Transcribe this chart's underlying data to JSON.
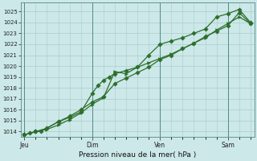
{
  "xlabel": "Pression niveau de la mer( hPa )",
  "bg_color": "#cce8e8",
  "grid_color": "#aacccc",
  "line_color": "#2d6e2d",
  "ylim": [
    1013.5,
    1025.8
  ],
  "yticks": [
    1014,
    1015,
    1016,
    1017,
    1018,
    1019,
    1020,
    1021,
    1022,
    1023,
    1024,
    1025
  ],
  "day_labels": [
    "Jeu",
    "Dim",
    "Ven",
    "Sam"
  ],
  "day_positions": [
    0,
    36,
    72,
    108
  ],
  "xlim": [
    -2,
    122
  ],
  "series1_x": [
    0,
    3,
    6,
    9,
    18,
    24,
    30,
    36,
    39,
    42,
    45,
    48,
    54,
    60,
    66,
    72,
    78,
    84,
    90,
    96,
    102,
    108,
    114,
    120
  ],
  "series1_y": [
    1013.7,
    1013.85,
    1014.0,
    1014.05,
    1014.9,
    1015.3,
    1015.8,
    1017.5,
    1018.2,
    1018.7,
    1019.0,
    1019.3,
    1019.6,
    1019.9,
    1021.0,
    1022.0,
    1022.3,
    1022.6,
    1023.0,
    1023.4,
    1024.5,
    1024.8,
    1025.2,
    1024.0
  ],
  "series2_x": [
    0,
    6,
    12,
    18,
    24,
    30,
    36,
    42,
    48,
    54,
    60,
    66,
    72,
    78,
    84,
    90,
    96,
    102,
    108,
    114,
    120
  ],
  "series2_y": [
    1013.7,
    1014.0,
    1014.2,
    1014.6,
    1015.1,
    1015.7,
    1016.5,
    1017.1,
    1019.5,
    1019.3,
    1019.9,
    1020.3,
    1020.7,
    1021.1,
    1021.6,
    1022.1,
    1022.6,
    1023.3,
    1023.9,
    1024.5,
    1023.9
  ],
  "series3_x": [
    0,
    6,
    12,
    18,
    24,
    30,
    36,
    42,
    48,
    54,
    60,
    66,
    72,
    78,
    84,
    90,
    96,
    102,
    108,
    114,
    120
  ],
  "series3_y": [
    1013.7,
    1014.0,
    1014.3,
    1014.9,
    1015.4,
    1016.0,
    1016.7,
    1017.2,
    1018.4,
    1018.9,
    1019.4,
    1019.9,
    1020.6,
    1021.0,
    1021.6,
    1022.1,
    1022.7,
    1023.2,
    1023.7,
    1024.9,
    1023.9
  ]
}
